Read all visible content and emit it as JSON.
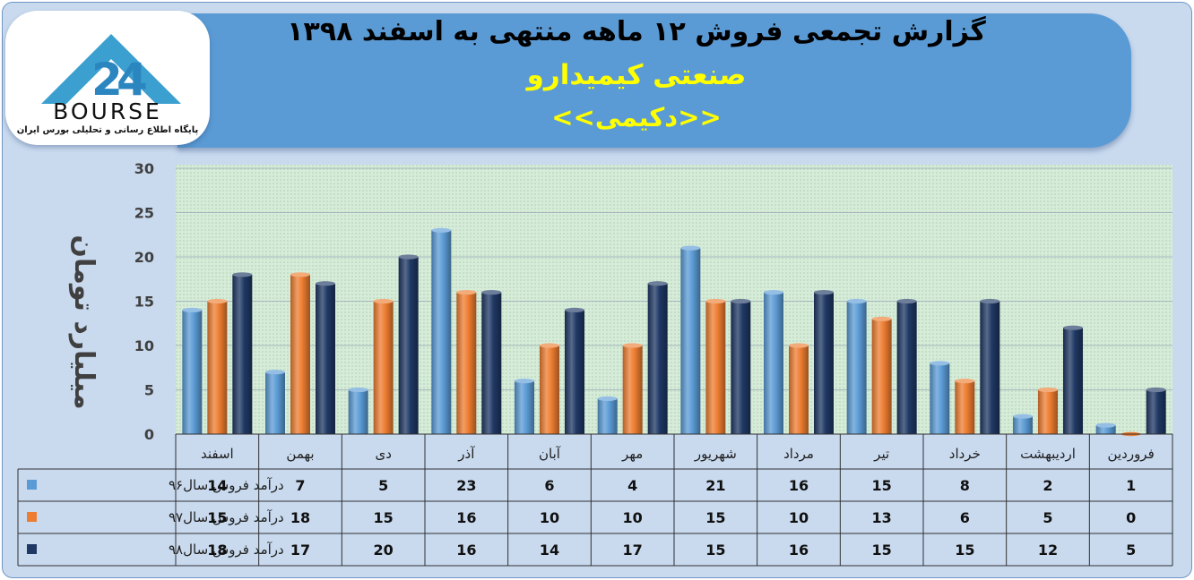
{
  "header": {
    "title": "گزارش تجمعی فروش  ۱۲ ماهه منتهی به اسفند ۱۳۹۸",
    "subtitle": "صنعتی کیمیدارو",
    "ticker": "<<دکیمی>>"
  },
  "logo": {
    "word": "BOURSE",
    "caption": "پایگاه اطلاع رسانی و تحلیلی بورس ایران"
  },
  "colors": {
    "series_96": "#5b9bd5",
    "series_97": "#ed7d31",
    "series_98": "#1f3864",
    "plot_bg": "#d6ecd9",
    "frame_bg": "#c9daef",
    "banner": "#5b9bd5"
  },
  "chart_data": {
    "type": "bar",
    "ylabel": "میلیارد تومان",
    "ylim": [
      0,
      30
    ],
    "yticks": [
      0,
      5,
      10,
      15,
      20,
      25,
      30
    ],
    "grid": true,
    "legend": "data-table",
    "categories": [
      "فروردین",
      "اردیبهشت",
      "خرداد",
      "تیر",
      "مرداد",
      "شهریور",
      "مهر",
      "آبان",
      "آذر",
      "دی",
      "بهمن",
      "اسفند"
    ],
    "series": [
      {
        "name": "درآمد فروش سال۹۶",
        "color": "#5b9bd5",
        "values": [
          1,
          2,
          8,
          15,
          16,
          21,
          4,
          6,
          23,
          5,
          7,
          14
        ]
      },
      {
        "name": "درآمد فروش سال۹۷",
        "color": "#ed7d31",
        "values": [
          0,
          5,
          6,
          13,
          10,
          15,
          10,
          10,
          16,
          15,
          18,
          15
        ]
      },
      {
        "name": "درآمد فروش سال۹۸",
        "color": "#1f3864",
        "values": [
          5,
          12,
          15,
          15,
          16,
          15,
          17,
          14,
          16,
          20,
          17,
          18
        ]
      }
    ]
  }
}
